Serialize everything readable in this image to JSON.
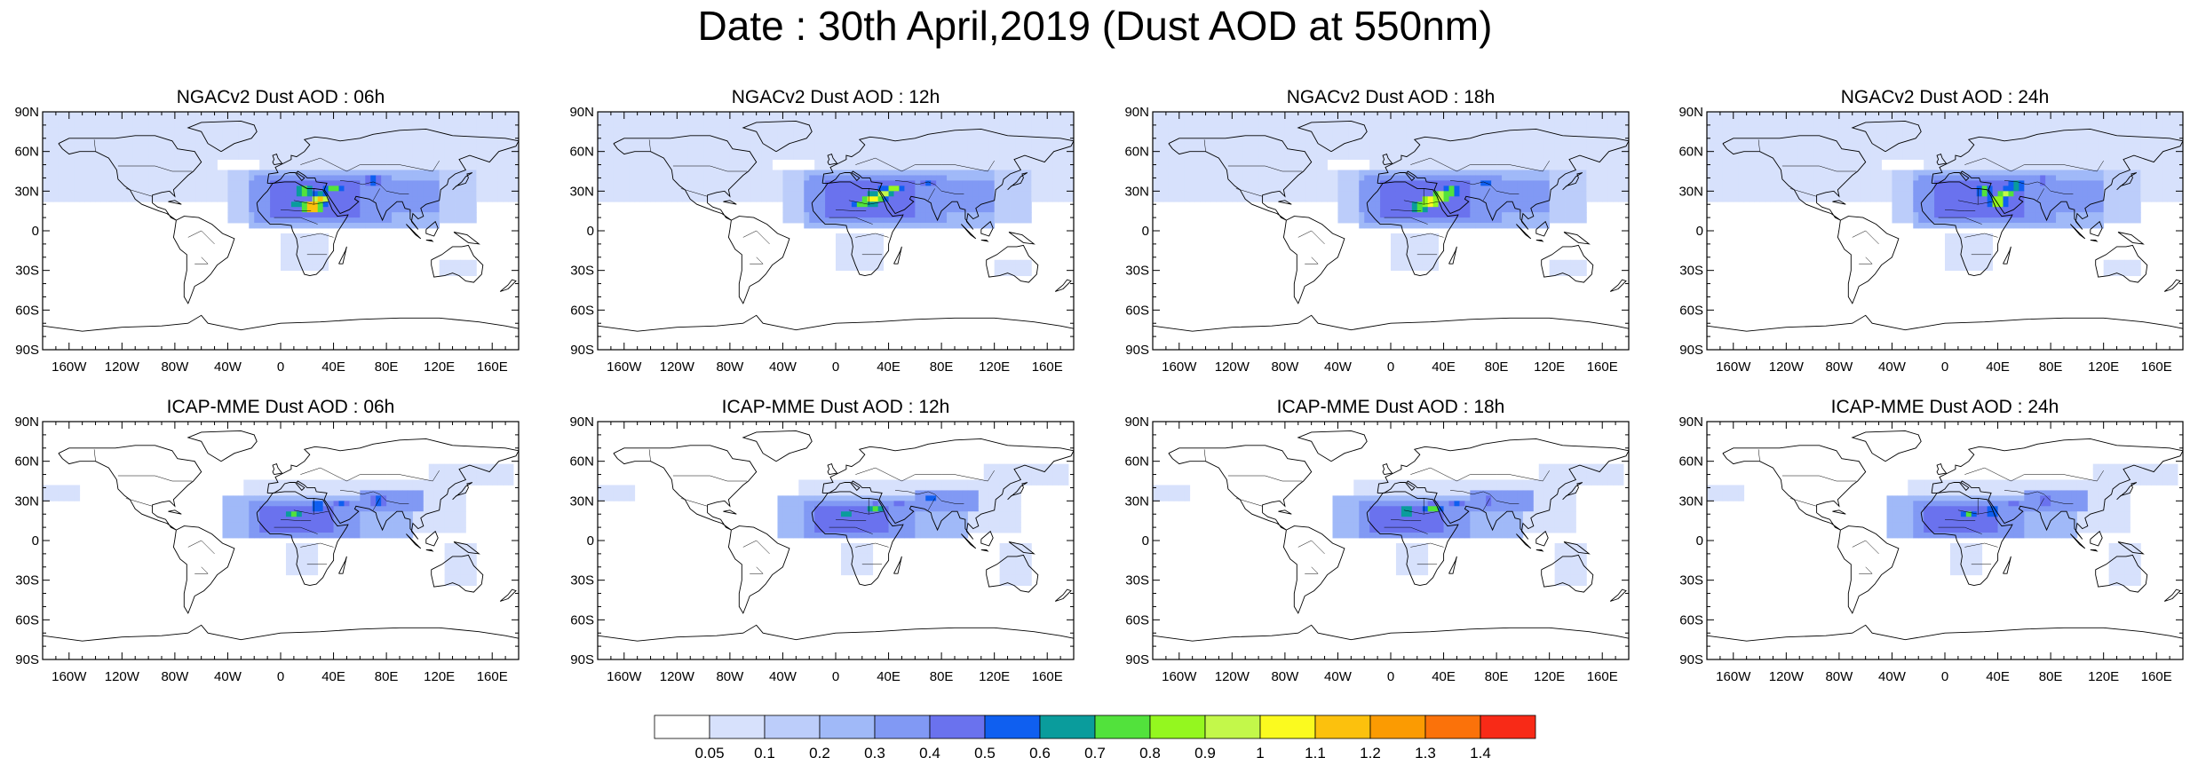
{
  "title": "Date : 30th April,2019 (Dust AOD at 550nm)",
  "rows": [
    {
      "model": "NGACv2",
      "panels": [
        {
          "title": "NGACv2 Dust AOD : 06h",
          "hotspot": [
            [
              24,
              18,
              1.35
            ],
            [
              30,
              24,
              1.1
            ],
            [
              18,
              30,
              0.9
            ],
            [
              40,
              32,
              0.8
            ],
            [
              12,
              20,
              0.7
            ],
            [
              70,
              38,
              0.6
            ]
          ]
        },
        {
          "title": "NGACv2 Dust AOD : 12h",
          "hotspot": [
            [
              28,
              24,
              1.15
            ],
            [
              36,
              28,
              1.05
            ],
            [
              20,
              20,
              0.8
            ],
            [
              44,
              32,
              0.85
            ],
            [
              70,
              36,
              0.55
            ]
          ]
        },
        {
          "title": "NGACv2 Dust AOD : 18h",
          "hotspot": [
            [
              30,
              22,
              1.2
            ],
            [
              38,
              26,
              1.1
            ],
            [
              22,
              18,
              0.85
            ],
            [
              46,
              30,
              0.8
            ],
            [
              72,
              36,
              0.6
            ]
          ]
        },
        {
          "title": "NGACv2 Dust AOD : 24h",
          "hotspot": [
            [
              40,
              22,
              1.05
            ],
            [
              46,
              28,
              0.95
            ],
            [
              30,
              30,
              0.8
            ],
            [
              54,
              34,
              0.7
            ],
            [
              74,
              38,
              0.55
            ]
          ]
        }
      ]
    },
    {
      "model": "ICAP-MME",
      "panels": [
        {
          "title": "ICAP-MME Dust AOD : 06h",
          "hotspot": [
            [
              10,
              20,
              0.75
            ],
            [
              28,
              26,
              0.7
            ],
            [
              74,
              30,
              0.6
            ],
            [
              46,
              28,
              0.5
            ]
          ]
        },
        {
          "title": "ICAP-MME Dust AOD : 12h",
          "hotspot": [
            [
              8,
              20,
              0.7
            ],
            [
              30,
              24,
              0.75
            ],
            [
              72,
              32,
              0.55
            ],
            [
              48,
              28,
              0.5
            ]
          ]
        },
        {
          "title": "ICAP-MME Dust AOD : 18h",
          "hotspot": [
            [
              12,
              22,
              0.75
            ],
            [
              32,
              24,
              0.8
            ],
            [
              74,
              30,
              0.55
            ],
            [
              50,
              28,
              0.5
            ]
          ]
        },
        {
          "title": "ICAP-MME Dust AOD : 24h",
          "hotspot": [
            [
              18,
              20,
              0.7
            ],
            [
              36,
              22,
              0.7
            ],
            [
              76,
              30,
              0.55
            ],
            [
              52,
              28,
              0.45
            ]
          ]
        }
      ]
    }
  ],
  "axes": {
    "lat_ticks": [
      "90N",
      "60N",
      "30N",
      "0",
      "30S",
      "60S",
      "90S"
    ],
    "lat_values": [
      90,
      60,
      30,
      0,
      -30,
      -60,
      -90
    ],
    "lon_ticks": [
      "160W",
      "120W",
      "80W",
      "40W",
      "0",
      "40E",
      "80E",
      "120E",
      "160E"
    ],
    "lon_values": [
      -160,
      -120,
      -80,
      -40,
      0,
      40,
      80,
      120,
      160
    ],
    "lon_range": [
      -180,
      180
    ],
    "lat_range": [
      -90,
      90
    ]
  },
  "colorbar": {
    "labels": [
      "0.05",
      "0.1",
      "0.2",
      "0.3",
      "0.4",
      "0.5",
      "0.6",
      "0.7",
      "0.8",
      "0.9",
      "1",
      "1.1",
      "1.2",
      "1.3",
      "1.4"
    ],
    "thresholds": [
      0.05,
      0.1,
      0.2,
      0.3,
      0.4,
      0.5,
      0.6,
      0.7,
      0.8,
      0.9,
      1.0,
      1.1,
      1.2,
      1.3,
      1.4
    ],
    "colors": [
      "#ffffff",
      "#d7e1fc",
      "#bccdfa",
      "#a0b9f8",
      "#8199f4",
      "#6a72ee",
      "#0f5ff0",
      "#0a9c9c",
      "#52e23c",
      "#94f71f",
      "#c3f84a",
      "#fbfa1f",
      "#fcc10d",
      "#fb9b02",
      "#fb720a",
      "#f82a17"
    ]
  }
}
